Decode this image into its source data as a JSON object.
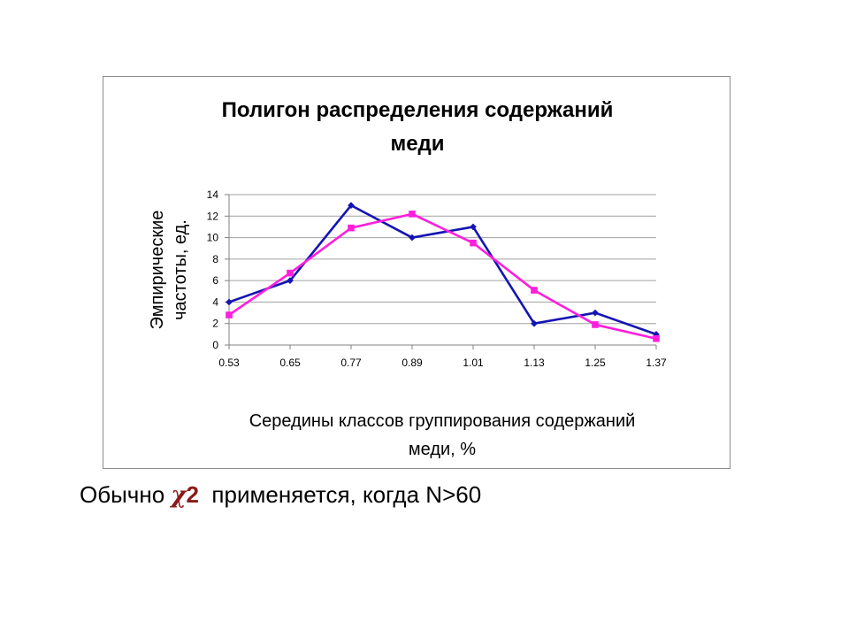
{
  "colors": {
    "series_blue": "#1414b4",
    "series_magenta": "#ff1edc",
    "gridline": "#a0a0a0",
    "caption_accent": "#8b1a1a"
  },
  "chart_data": {
    "type": "line",
    "title_lines": [
      "Полигон распределения содержаний",
      "меди"
    ],
    "xlabel_lines": [
      "Середины классов группирования содержаний",
      "меди, %"
    ],
    "ylabel_lines": [
      "Эмпирические",
      "частоты, ед."
    ],
    "categories": [
      "0.53",
      "0.65",
      "0.77",
      "0.89",
      "1.01",
      "1.13",
      "1.25",
      "1.37"
    ],
    "yticks": [
      "0",
      "2",
      "4",
      "6",
      "8",
      "10",
      "12",
      "14"
    ],
    "ylim": [
      0,
      14
    ],
    "grid": true,
    "legend": "none",
    "series": [
      {
        "color": "#1414b4",
        "marker": "diamond",
        "values": [
          4,
          6,
          13,
          10,
          11,
          2,
          3,
          1
        ]
      },
      {
        "color": "#ff1edc",
        "marker": "square",
        "values": [
          2.8,
          6.7,
          10.9,
          12.2,
          9.5,
          5.1,
          1.9,
          0.6
        ]
      }
    ]
  },
  "caption": {
    "prefix": "Обычно ",
    "chi": "χ",
    "two": "2",
    "suffix": "  применяется, когда N>60"
  }
}
